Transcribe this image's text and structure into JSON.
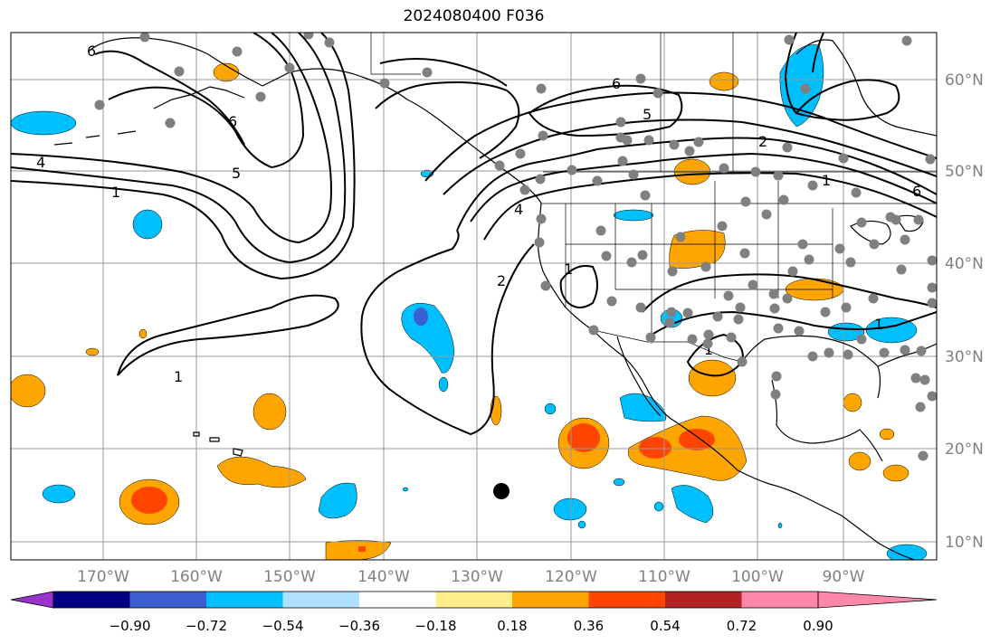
{
  "title": "2024080400 F036",
  "map": {
    "lon_range": [
      -180,
      -81
    ],
    "lat_range": [
      8,
      65
    ],
    "lon_ticks": [
      "170°W",
      "160°W",
      "150°W",
      "140°W",
      "130°W",
      "120°W",
      "110°W",
      "100°W",
      "90°W"
    ],
    "lat_ticks": [
      "10°N",
      "20°N",
      "30°N",
      "40°N",
      "50°N",
      "60°N"
    ],
    "grid": true
  },
  "colorbar": {
    "ticks": [
      "−0.90",
      "−0.72",
      "−0.54",
      "−0.36",
      "−0.18",
      "0.18",
      "0.36",
      "0.54",
      "0.72",
      "0.90"
    ],
    "colors": [
      "#9933cc",
      "#000080",
      "#3b5fcf",
      "#00bfff",
      "#b0e0ff",
      "#ffffff",
      "#ffec8b",
      "#ffa500",
      "#ff4500",
      "#b22222",
      "#ff88aa"
    ]
  },
  "contour_labels": [
    "6",
    "4",
    "1",
    "5",
    "6",
    "6",
    "4",
    "5",
    "1",
    "2",
    "6",
    "2",
    "1",
    "1",
    "1",
    "1"
  ],
  "markers": {
    "station_color": "#808080",
    "storm_color": "#000000"
  }
}
